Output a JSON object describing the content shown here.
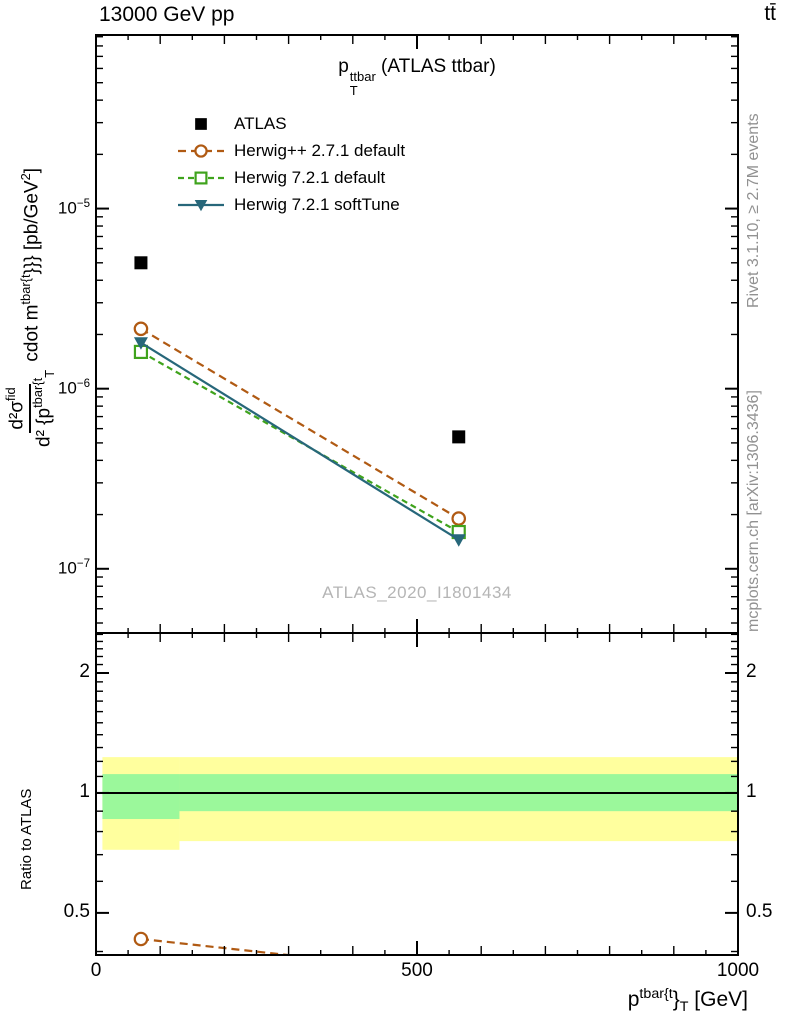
{
  "header": {
    "left_title": "13000 GeV pp",
    "right_title": "tt̄"
  },
  "main_panel": {
    "title_html": "p<span class=\"ss\"><span>ttbar</span><span>T</span></span> (ATLAS ttbar)",
    "watermark": "ATLAS_2020_I1801434",
    "ylabel_num_html": "d²σ<sup>fid</sup>",
    "ylabel_den_html": "d² {p<sup>tbar{t</sup><sub>T</sub>",
    "ylabel_rest_html": "&nbsp;cdot m<sup>tbar{t</sup>}}} [pb/GeV<sup>2</sup>]"
  },
  "ratio_panel": {
    "ylabel": "Ratio to ATLAS"
  },
  "xaxis": {
    "label_html": "p<sup>tbar{t</sup>}<sub>T</sub> [GeV]"
  },
  "sidebar_right": {
    "top_note": "Rivet 3.1.10, ≥ 2.7M events",
    "bottom_note": "mcplots.cern.ch [arXiv:1306.3436]"
  },
  "colors": {
    "band_yellow": "#ffff9e",
    "band_green": "#9bf89b",
    "frame": "#000000",
    "gray_text": "#919191",
    "watermark_gray": "#b5b5b5"
  },
  "chart_data": {
    "type": "line",
    "title": "p_T^ttbar (ATLAS ttbar)",
    "xlabel": "p^tbar{t}_T [GeV]",
    "ylabel": "d²σ^fid / d²{p^tbar{t}_T cdot m^tbar{t}}} [pb/GeV²]",
    "ratio_ylabel": "Ratio to ATLAS",
    "xlim": [
      0,
      1000
    ],
    "ylim_main": [
      4.4e-08,
      9.2e-05
    ],
    "ylim_ratio": [
      0.392,
      2.52
    ],
    "x_bin_edges": [
      10,
      130,
      1000
    ],
    "x_centers": [
      70,
      565
    ],
    "series": [
      {
        "name": "ATLAS",
        "color": "#000000",
        "marker": "square-filled",
        "line": "none",
        "dash": "",
        "values": [
          5e-06,
          5.4e-07
        ]
      },
      {
        "name": "Herwig++ 2.7.1 default",
        "color": "#b05a13",
        "marker": "circle-open",
        "line": "dashed",
        "dash": "8 5",
        "values": [
          2.15e-06,
          1.9e-07
        ]
      },
      {
        "name": "Herwig 7.2.1 default",
        "color": "#3fa31c",
        "marker": "square-open",
        "line": "dashed",
        "dash": "6 4",
        "values": [
          1.6e-06,
          1.6e-07
        ]
      },
      {
        "name": "Herwig 7.2.1 softTune",
        "color": "#27677a",
        "marker": "triangle-down-filled",
        "line": "solid",
        "dash": "",
        "values": [
          1.8e-06,
          1.45e-07
        ]
      }
    ],
    "ratio_reference": "ATLAS",
    "ratio_line_at": 1,
    "ratio_bands": [
      {
        "x": [
          10,
          130
        ],
        "yellow": [
          0.72,
          1.23
        ],
        "green": [
          0.86,
          1.115
        ]
      },
      {
        "x": [
          130,
          1000
        ],
        "yellow": [
          0.757,
          1.23
        ],
        "green": [
          0.9,
          1.115
        ]
      }
    ],
    "main_yticks": [
      {
        "html": "10<sup>−5</sup>",
        "v": 1e-05
      },
      {
        "html": "10<sup>−6</sup>",
        "v": 1e-06
      },
      {
        "html": "10<sup>−7</sup>",
        "v": 1e-07
      }
    ],
    "ratio_yticks": [
      {
        "label": "2",
        "v": 2
      },
      {
        "label": "1",
        "v": 1
      },
      {
        "label": "0.5",
        "v": 0.5
      }
    ],
    "xticks": [
      {
        "label": "0",
        "v": 0
      },
      {
        "label": "500",
        "v": 500
      },
      {
        "label": "1000",
        "v": 1000
      }
    ],
    "legend_position": "top-left",
    "grid": false,
    "yscale": "log",
    "ratio_yscale": "log"
  }
}
